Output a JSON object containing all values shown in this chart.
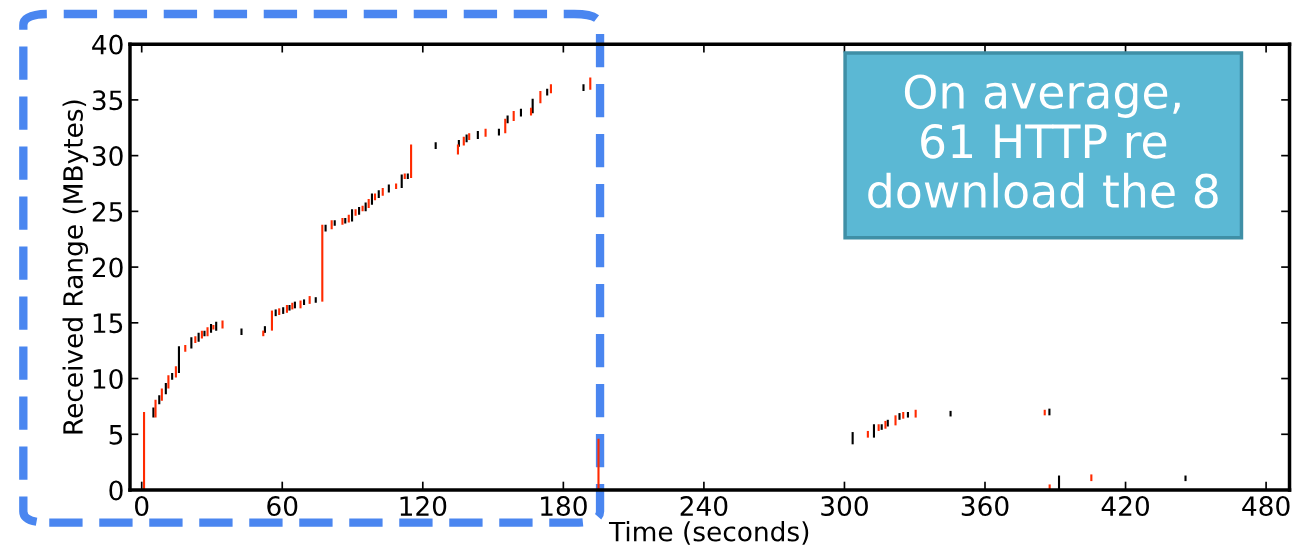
{
  "chart_data": {
    "type": "bar",
    "xlabel": "Time (seconds)",
    "ylabel": "Received Range (MBytes)",
    "xlim": [
      -5,
      490
    ],
    "ylim": [
      0,
      40
    ],
    "xticks": [
      0,
      60,
      120,
      180,
      240,
      300,
      360,
      420,
      480
    ],
    "yticks": [
      0,
      5,
      10,
      15,
      20,
      25,
      30,
      35,
      40
    ],
    "grid": false,
    "annotations": [
      "On average,\n61 HTTP re\ndownload the 8"
    ],
    "series": [
      {
        "color": "#000000",
        "x": [
          5,
          7.5,
          10.3,
          13,
          15.9,
          21.2,
          24.3,
          26.8,
          29.6,
          31.8,
          42.6,
          52.6,
          57.2,
          60.4,
          63.1,
          65.4,
          69.3,
          74.3,
          78.5,
          82.4,
          86.9,
          89.8,
          92.8,
          95.6,
          98.3,
          101.2,
          105.5,
          111,
          113.6,
          125.5,
          135.4,
          138.7,
          143.5,
          152.5,
          156.2,
          161.9,
          166.9,
          173.1,
          188.6,
          303.5,
          312.6,
          315.9,
          318.5,
          323.5,
          327.1,
          345.3,
          387.5,
          391.6,
          445.6
        ],
        "base": [
          6.5,
          7.7,
          8.6,
          9.9,
          10.5,
          12.7,
          13.3,
          13.8,
          14.1,
          14.3,
          13.9,
          14.1,
          15.6,
          15.8,
          16.1,
          16.3,
          16.6,
          16.8,
          23.2,
          23.7,
          23.9,
          24.1,
          24.7,
          25.0,
          25.6,
          26.2,
          26.7,
          27.1,
          27.9,
          30.6,
          30.8,
          31.2,
          31.5,
          31.8,
          32.9,
          33.5,
          33.8,
          35.4,
          35.8,
          4.1,
          4.7,
          5.4,
          5.7,
          6.3,
          6.5,
          6.6,
          6.7,
          0,
          0.8
        ],
        "values": [
          0.9,
          0.8,
          1.0,
          0.6,
          2.4,
          1.0,
          0.8,
          0.5,
          0.8,
          0.8,
          0.6,
          0.6,
          0.6,
          0.6,
          0.5,
          0.6,
          0.5,
          0.5,
          0.6,
          0.5,
          0.5,
          1.1,
          0.7,
          0.8,
          1.0,
          0.7,
          0.7,
          1.2,
          0.5,
          0.6,
          0.6,
          0.7,
          0.7,
          0.6,
          0.7,
          0.7,
          1.3,
          0.6,
          0.6,
          1.1,
          1.2,
          0.5,
          0.6,
          0.6,
          0.5,
          0.5,
          0.6,
          1.3,
          0.5
        ]
      },
      {
        "color": "#ff2a00",
        "x": [
          1,
          5.9,
          8.6,
          11.4,
          14.6,
          18.6,
          22.9,
          25.7,
          28.1,
          30.6,
          34.5,
          51.9,
          55.6,
          58.7,
          62,
          64.3,
          67.8,
          71.7,
          77.1,
          81.1,
          85.7,
          88.4,
          91.3,
          94.3,
          96.9,
          99.6,
          102.9,
          108.6,
          112.3,
          115,
          135,
          137.5,
          139.8,
          146.8,
          155.2,
          158.8,
          166.2,
          170.2,
          174.7,
          191.5,
          195,
          310,
          314.6,
          317.5,
          321.8,
          325.1,
          330.4,
          385.5,
          387.6,
          405.4
        ],
        "base": [
          0,
          6.5,
          8.0,
          9.1,
          10.1,
          12.4,
          13.2,
          13.6,
          13.8,
          14.4,
          14.5,
          13.8,
          14.3,
          15.7,
          15.9,
          16.2,
          16.3,
          16.7,
          16.9,
          23.4,
          23.8,
          24.0,
          24.6,
          25.0,
          25.3,
          26.0,
          26.4,
          27.0,
          27.9,
          28.0,
          30.1,
          30.9,
          31.4,
          31.7,
          32.0,
          33.1,
          33.6,
          34.7,
          35.6,
          35.9,
          0,
          4.7,
          5.3,
          5.5,
          5.8,
          6.4,
          6.5,
          6.7,
          0,
          0.8
        ],
        "values": [
          7.0,
          1.6,
          1.1,
          1.2,
          1.0,
          0.6,
          0.6,
          0.7,
          0.8,
          0.4,
          0.7,
          0.5,
          1.8,
          0.6,
          0.7,
          0.6,
          0.7,
          0.7,
          6.9,
          0.8,
          0.6,
          0.7,
          0.6,
          0.5,
          0.8,
          0.6,
          0.7,
          0.5,
          0.5,
          3.0,
          0.9,
          0.8,
          0.6,
          0.7,
          1.3,
          0.9,
          0.7,
          1.1,
          0.8,
          1.1,
          4.6,
          0.6,
          0.6,
          0.7,
          0.9,
          0.6,
          0.7,
          0.5,
          0.5,
          0.6
        ]
      }
    ]
  }
}
